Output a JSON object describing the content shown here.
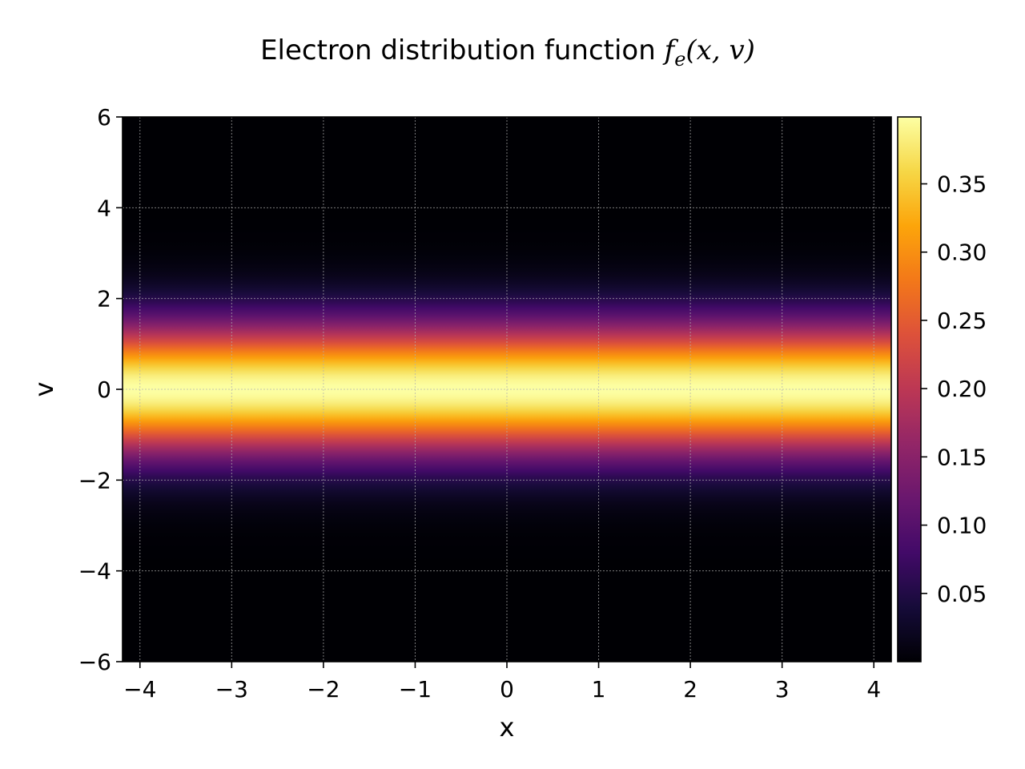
{
  "chart_data": {
    "type": "heatmap",
    "title": {
      "text": "Electron distribution function ",
      "math": {
        "f": "f",
        "sub": "e",
        "args": "(x, v)"
      }
    },
    "xlabel": "x",
    "ylabel": "v",
    "xlim": [
      -4.19,
      4.19
    ],
    "ylim": [
      -6,
      6
    ],
    "xticks": [
      -4,
      -3,
      -2,
      -1,
      0,
      1,
      2,
      3,
      4
    ],
    "yticks": [
      -6,
      -4,
      -2,
      0,
      2,
      4,
      6
    ],
    "grid": true,
    "colormap": "inferno",
    "colorbar": {
      "min": 0,
      "max": 0.399,
      "ticks": [
        0.05,
        0.1,
        0.15,
        0.2,
        0.25,
        0.3,
        0.35
      ],
      "tick_labels": [
        "0.05",
        "0.10",
        "0.15",
        "0.20",
        "0.25",
        "0.30",
        "0.35"
      ]
    },
    "data_model": {
      "description": "Maxwellian in v, uniform in x",
      "v_center": 0,
      "v_sigma": 1,
      "peak": 0.399
    },
    "x_tick_labels": [
      "−4",
      "−3",
      "−2",
      "−1",
      "0",
      "1",
      "2",
      "3",
      "4"
    ],
    "y_tick_labels": [
      "−6",
      "−4",
      "−2",
      "0",
      "2",
      "4",
      "6"
    ]
  }
}
